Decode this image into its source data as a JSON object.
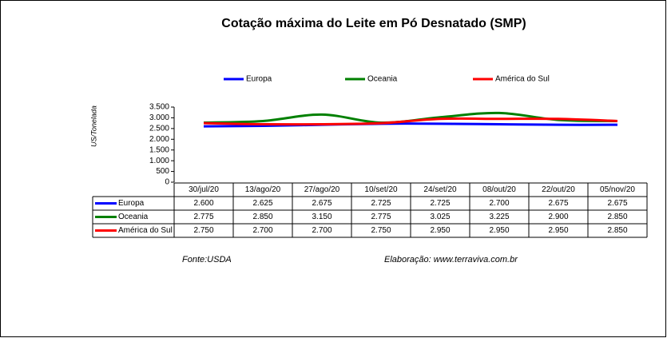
{
  "chart_data": {
    "type": "line",
    "title": "Cotação máxima do Leite em Pó Desnatado (SMP)",
    "ylabel": "US/Tonelada",
    "categories": [
      "30/jul/20",
      "13/ago/20",
      "27/ago/20",
      "10/set/20",
      "24/set/20",
      "08/out/20",
      "22/out/20",
      "05/nov/20"
    ],
    "series": [
      {
        "name": "Europa",
        "color": "#0000ff",
        "values": [
          2600,
          2625,
          2675,
          2725,
          2725,
          2700,
          2675,
          2675
        ],
        "value_labels": [
          "2.600",
          "2.625",
          "2.675",
          "2.725",
          "2.725",
          "2.700",
          "2.675",
          "2.675"
        ]
      },
      {
        "name": "Oceania",
        "color": "#008000",
        "values": [
          2775,
          2850,
          3150,
          2775,
          3025,
          3225,
          2900,
          2850
        ],
        "value_labels": [
          "2.775",
          "2.850",
          "3.150",
          "2.775",
          "3.025",
          "3.225",
          "2.900",
          "2.850"
        ]
      },
      {
        "name": "América do Sul",
        "color": "#ff0000",
        "values": [
          2750,
          2700,
          2700,
          2750,
          2950,
          2950,
          2950,
          2850
        ],
        "value_labels": [
          "2.750",
          "2.700",
          "2.700",
          "2.750",
          "2.950",
          "2.950",
          "2.950",
          "2.850"
        ]
      }
    ],
    "ylim": [
      0,
      3500
    ],
    "yticks": [
      0,
      {
        "value": 500,
        "label": "500"
      },
      {
        "value": 1000,
        "label": "1.000"
      },
      {
        "value": 1500,
        "label": "1.500"
      },
      {
        "value": 2000,
        "label": "2.000"
      },
      {
        "value": 2500,
        "label": "2.500"
      },
      {
        "value": 3000,
        "label": "3.000"
      },
      {
        "value": 3500,
        "label": "3.500"
      }
    ],
    "smooth": true,
    "notes": [
      "Fonte:USDA",
      "Elaboração:  www.terraviva.com.br"
    ]
  }
}
